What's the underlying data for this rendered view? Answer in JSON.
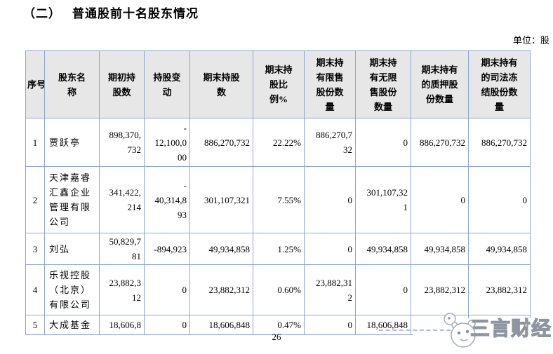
{
  "page": {
    "heading": {
      "number": "（二）",
      "text": "普通股前十名股东情况"
    },
    "unit_label": "单位：股",
    "page_number": "26",
    "watermark": {
      "brand_text": "三言财经",
      "logo": "panda-mascot-icon"
    }
  },
  "table": {
    "headers": [
      "序号",
      "股东名\n称",
      "期初持\n股数",
      "持股变\n动",
      "期末持股\n数",
      "期末持\n股比\n例%",
      "期末持\n有限售\n股份数\n量",
      "期末持\n有无限\n售股份\n数量",
      "期末持有\n的质押股\n份数量",
      "期末持有\n的司法冻\n结股份数\n量"
    ],
    "rows": [
      [
        "1",
        "贾跃亭",
        "898,370,\n732",
        "-\n12,100,0\n00",
        "886,270,732",
        "22.22%",
        "886,270,7\n32",
        "0",
        "886,270,732",
        "886,270,732"
      ],
      [
        "2",
        "天津嘉睿\n汇鑫企业\n管理有限\n公司",
        "341,422,\n214",
        "-\n40,314,8\n93",
        "301,107,321",
        "7.55%",
        "0",
        "301,107,32\n1",
        "0",
        "0"
      ],
      [
        "3",
        "刘弘",
        "50,829,7\n81",
        "-894,923",
        "49,934,858",
        "1.25%",
        "0",
        "49,934,858",
        "49,934,858",
        "49,934,858"
      ],
      [
        "4",
        "乐视控股\n（北京）\n有限公司",
        "23,882,3\n12",
        "0",
        "23,882,312",
        "0.60%",
        "23,882,31\n2",
        "0",
        "23,882,312",
        "23,882,312"
      ],
      [
        "5",
        "大成基金",
        "18,606,8",
        "0",
        "18,606,848",
        "0.47%",
        "0",
        "18,606,848",
        "",
        ""
      ]
    ]
  },
  "colors": {
    "table_border": "#8aa5da",
    "header_bg": "#e7e7e7",
    "watermark_gray": "#8d95a0"
  }
}
